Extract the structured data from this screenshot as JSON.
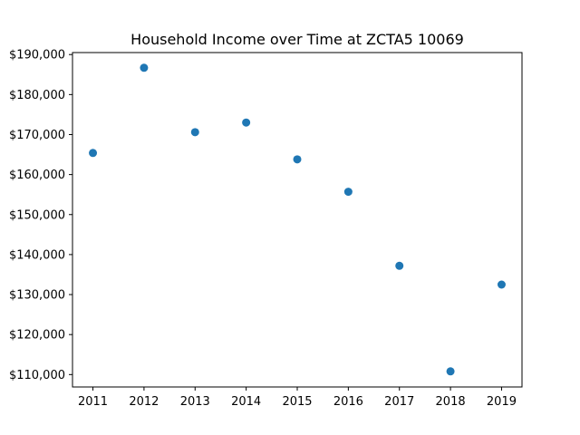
{
  "chart_data": {
    "type": "scatter",
    "title": "Household Income over Time at ZCTA5 10069",
    "xlabel": "",
    "ylabel": "",
    "x": [
      2011,
      2012,
      2013,
      2014,
      2015,
      2016,
      2017,
      2018,
      2019
    ],
    "y": [
      165400,
      186700,
      170600,
      173000,
      163800,
      155700,
      137200,
      110800,
      132500
    ],
    "xlim": [
      2010.6,
      2019.4
    ],
    "ylim": [
      106900,
      190500
    ],
    "x_ticks": [
      2011,
      2012,
      2013,
      2014,
      2015,
      2016,
      2017,
      2018,
      2019
    ],
    "x_tick_labels": [
      "2011",
      "2012",
      "2013",
      "2014",
      "2015",
      "2016",
      "2017",
      "2018",
      "2019"
    ],
    "y_ticks": [
      110000,
      120000,
      130000,
      140000,
      150000,
      160000,
      170000,
      180000,
      190000
    ],
    "y_tick_labels": [
      "$110,000",
      "$120,000",
      "$130,000",
      "$140,000",
      "$150,000",
      "$160,000",
      "$170,000",
      "$180,000",
      "$190,000"
    ],
    "grid": false,
    "legend": "none",
    "marker_color": "#1f77b4"
  }
}
